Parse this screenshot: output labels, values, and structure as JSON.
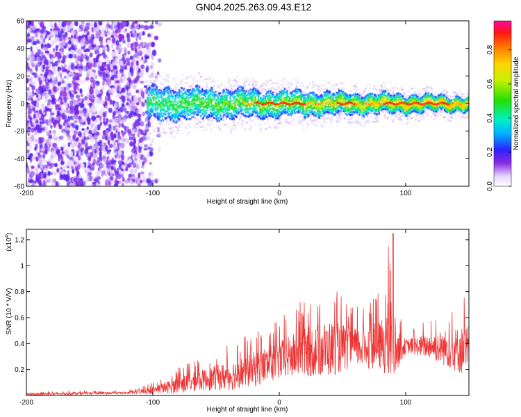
{
  "title": "GN04.2025.263.09.43.E12",
  "chart_data": [
    {
      "type": "heatmap",
      "xlabel": "Height of straight line (km)",
      "ylabel": "Frequency (Hz)",
      "xlim": [
        -200,
        150
      ],
      "ylim": [
        -60,
        60
      ],
      "xticks": [
        -200,
        -100,
        0,
        100
      ],
      "yticks": [
        -60,
        -40,
        -20,
        0,
        20,
        40,
        60
      ],
      "colorbar": {
        "label": "Normalized spectral amplitude",
        "range": [
          0,
          0.97
        ],
        "ticks": [
          0.0,
          0.2,
          0.4,
          0.6,
          0.8
        ]
      },
      "regions": [
        {
          "x_range": [
            -200,
            -105
          ],
          "description_values": {
            "mean_amplitude": 0.08,
            "freq_span": [
              -60,
              60
            ]
          }
        },
        {
          "x_range": [
            -105,
            150
          ],
          "center_freq": 0,
          "band_halfwidth": [
            12,
            5
          ],
          "peak_amplitude": 0.9
        }
      ]
    },
    {
      "type": "line",
      "xlabel": "Height of straight line (km)",
      "ylabel": "SNR (10 * V/V)",
      "scale_label": "(x10",
      "scale_exponent": "4",
      "scale_close": ")",
      "xlim": [
        -200,
        150
      ],
      "ylim": [
        0,
        1.28
      ],
      "xticks": [
        -200,
        -100,
        0,
        100
      ],
      "yticks": [
        0.2,
        0.4,
        0.6,
        0.8,
        1.0,
        1.2
      ],
      "color": "#ee3333",
      "envelope": {
        "x": [
          -200,
          -120,
          -100,
          -80,
          -60,
          -40,
          -20,
          0,
          20,
          40,
          60,
          80,
          88,
          92,
          100,
          120,
          150
        ],
        "y_mean": [
          0.01,
          0.02,
          0.04,
          0.08,
          0.12,
          0.15,
          0.2,
          0.27,
          0.33,
          0.36,
          0.37,
          0.38,
          0.4,
          0.34,
          0.38,
          0.38,
          0.34
        ],
        "y_peak": [
          0.03,
          0.04,
          0.1,
          0.22,
          0.3,
          0.4,
          0.5,
          0.6,
          0.75,
          0.85,
          0.7,
          0.8,
          1.25,
          0.7,
          0.5,
          0.6,
          0.8
        ]
      }
    }
  ]
}
